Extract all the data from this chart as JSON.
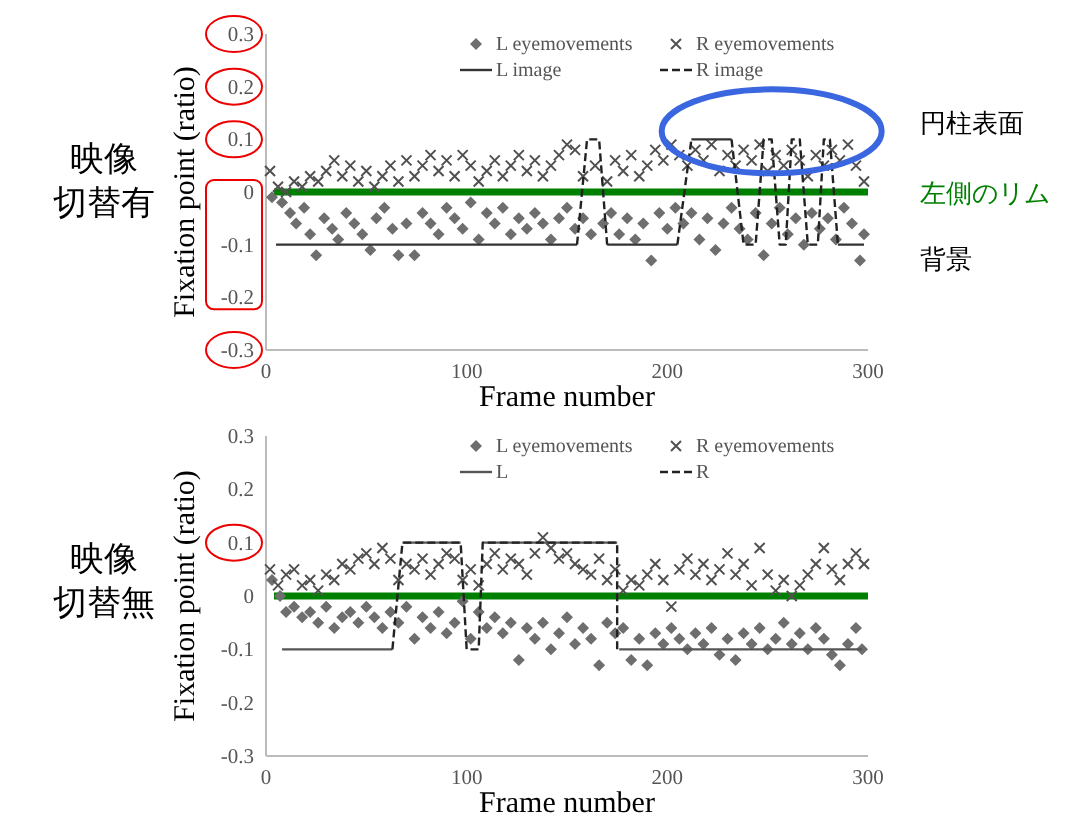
{
  "chart_data": [
    {
      "type": "scatter",
      "xlabel": "Frame number",
      "ylabel": "Fixation point (ratio)",
      "xlim": [
        0,
        300
      ],
      "xticks": [
        0,
        100,
        200,
        300
      ],
      "ylim": [
        -0.3,
        0.3
      ],
      "yticks": [
        -0.3,
        -0.2,
        -0.1,
        0,
        0.1,
        0.2,
        0.3
      ],
      "legend": "top right",
      "grid": false,
      "annotations": [
        "映像切替有",
        "円柱表面",
        "左側のリム",
        "背景"
      ],
      "ref_lines": [
        {
          "axis": "y",
          "value": 0,
          "color": "#008000"
        }
      ],
      "series": [
        {
          "name": "L eyemovements",
          "color": "#6e6e6e",
          "marker": "diamond",
          "x": [
            3,
            8,
            12,
            15,
            19,
            22,
            25,
            29,
            33,
            36,
            40,
            44,
            48,
            52,
            55,
            59,
            63,
            66,
            70,
            74,
            78,
            82,
            86,
            90,
            94,
            98,
            102,
            106,
            110,
            114,
            118,
            122,
            126,
            130,
            134,
            138,
            142,
            146,
            150,
            154,
            158,
            162,
            168,
            172,
            176,
            180,
            184,
            188,
            192,
            196,
            200,
            204,
            208,
            212,
            216,
            220,
            224,
            228,
            232,
            236,
            240,
            244,
            248,
            252,
            256,
            260,
            264,
            268,
            272,
            276,
            280,
            284,
            288,
            292,
            296,
            298
          ],
          "values": [
            -0.01,
            -0.02,
            -0.04,
            -0.06,
            -0.03,
            -0.08,
            -0.12,
            -0.05,
            -0.07,
            -0.09,
            -0.04,
            -0.06,
            -0.08,
            -0.11,
            -0.05,
            -0.03,
            -0.07,
            -0.12,
            -0.06,
            -0.12,
            -0.04,
            -0.06,
            -0.08,
            -0.03,
            -0.05,
            -0.07,
            -0.02,
            -0.09,
            -0.04,
            -0.06,
            -0.03,
            -0.08,
            -0.05,
            -0.07,
            -0.04,
            -0.06,
            -0.09,
            -0.05,
            -0.03,
            -0.07,
            -0.05,
            -0.08,
            -0.06,
            -0.04,
            -0.08,
            -0.05,
            -0.09,
            -0.06,
            -0.13,
            -0.04,
            -0.07,
            -0.03,
            -0.06,
            -0.04,
            -0.09,
            -0.05,
            -0.11,
            -0.06,
            -0.03,
            -0.07,
            -0.09,
            -0.04,
            -0.12,
            -0.06,
            -0.03,
            -0.08,
            -0.05,
            -0.1,
            -0.04,
            -0.07,
            -0.05,
            -0.09,
            -0.03,
            -0.06,
            -0.13,
            -0.08
          ]
        },
        {
          "name": "R eyemovements",
          "color": "#505050",
          "marker": "cross",
          "x": [
            2,
            6,
            10,
            14,
            18,
            22,
            26,
            30,
            34,
            38,
            42,
            46,
            50,
            54,
            58,
            62,
            66,
            70,
            74,
            78,
            82,
            86,
            90,
            94,
            98,
            102,
            106,
            110,
            114,
            118,
            122,
            126,
            130,
            134,
            138,
            142,
            146,
            150,
            154,
            158,
            164,
            170,
            174,
            178,
            182,
            186,
            190,
            194,
            198,
            202,
            206,
            210,
            214,
            218,
            222,
            226,
            230,
            234,
            238,
            242,
            246,
            250,
            254,
            258,
            262,
            266,
            270,
            274,
            278,
            282,
            286,
            290,
            294,
            298
          ],
          "values": [
            0.04,
            0.01,
            0.0,
            0.02,
            0.01,
            0.03,
            0.02,
            0.04,
            0.06,
            0.03,
            0.05,
            0.02,
            0.04,
            0.01,
            0.03,
            0.05,
            0.02,
            0.06,
            0.03,
            0.05,
            0.07,
            0.04,
            0.06,
            0.03,
            0.07,
            0.05,
            0.02,
            0.04,
            0.06,
            0.03,
            0.05,
            0.07,
            0.04,
            0.06,
            0.03,
            0.05,
            0.07,
            0.09,
            0.08,
            0.03,
            0.05,
            0.02,
            0.06,
            0.04,
            0.07,
            0.03,
            0.05,
            0.08,
            0.06,
            0.09,
            0.07,
            0.05,
            0.08,
            0.06,
            0.09,
            0.04,
            0.07,
            0.05,
            0.08,
            0.06,
            0.09,
            0.04,
            0.07,
            0.05,
            0.08,
            0.06,
            0.03,
            0.07,
            0.05,
            0.08,
            0.06,
            0.09,
            0.05,
            0.02
          ]
        },
        {
          "name": "L image",
          "type": "line",
          "color": "#333333",
          "line_style": "solid",
          "x": [
            5,
            155,
            null,
            170,
            205,
            null,
            212,
            232,
            null,
            285,
            298
          ],
          "values": [
            -0.1,
            -0.1,
            null,
            -0.1,
            -0.1,
            null,
            0.1,
            0.1,
            null,
            -0.1,
            -0.1
          ]
        },
        {
          "name": "R image",
          "type": "line",
          "color": "#222222",
          "line_style": "dashed",
          "x": [
            155,
            160,
            166,
            170,
            null,
            205,
            212,
            null,
            232,
            238,
            244,
            248,
            252,
            256,
            259,
            262,
            266,
            270,
            275,
            278,
            281,
            285
          ],
          "values": [
            -0.1,
            0.1,
            0.1,
            -0.1,
            null,
            -0.1,
            0.1,
            null,
            0.1,
            -0.1,
            -0.1,
            0.1,
            0.1,
            -0.1,
            -0.1,
            0.1,
            0.1,
            -0.1,
            -0.1,
            0.1,
            0.1,
            -0.1
          ]
        }
      ]
    },
    {
      "type": "scatter",
      "xlabel": "Frame number",
      "ylabel": "Fixation point (ratio)",
      "xlim": [
        0,
        300
      ],
      "xticks": [
        0,
        100,
        200,
        300
      ],
      "ylim": [
        -0.3,
        0.3
      ],
      "yticks": [
        -0.3,
        -0.2,
        -0.1,
        0,
        0.1,
        0.2,
        0.3
      ],
      "legend": "top right",
      "grid": false,
      "annotations": [
        "映像切替無"
      ],
      "ref_lines": [
        {
          "axis": "y",
          "value": 0,
          "color": "#008000"
        }
      ],
      "series": [
        {
          "name": "L eyemovements",
          "color": "#6e6e6e",
          "marker": "diamond",
          "x": [
            3,
            7,
            10,
            14,
            18,
            22,
            26,
            30,
            34,
            38,
            42,
            46,
            50,
            54,
            58,
            62,
            66,
            70,
            74,
            78,
            82,
            86,
            90,
            94,
            98,
            102,
            106,
            110,
            114,
            118,
            122,
            126,
            130,
            134,
            138,
            142,
            146,
            150,
            154,
            158,
            162,
            166,
            170,
            174,
            178,
            182,
            186,
            190,
            194,
            198,
            202,
            206,
            210,
            214,
            218,
            222,
            226,
            230,
            234,
            238,
            242,
            246,
            250,
            254,
            258,
            262,
            266,
            270,
            274,
            278,
            282,
            286,
            290,
            294,
            297
          ],
          "values": [
            0.03,
            0.0,
            -0.03,
            -0.02,
            -0.04,
            -0.03,
            -0.05,
            -0.02,
            -0.06,
            -0.04,
            -0.03,
            -0.05,
            -0.02,
            -0.04,
            -0.06,
            -0.03,
            -0.05,
            -0.02,
            -0.08,
            -0.04,
            -0.06,
            -0.03,
            -0.07,
            -0.05,
            -0.01,
            -0.08,
            -0.03,
            -0.06,
            -0.04,
            -0.07,
            -0.05,
            -0.12,
            -0.06,
            -0.08,
            -0.05,
            -0.1,
            -0.07,
            -0.04,
            -0.09,
            -0.06,
            -0.08,
            -0.13,
            -0.05,
            -0.07,
            -0.06,
            -0.12,
            -0.08,
            -0.13,
            -0.07,
            -0.09,
            -0.06,
            -0.08,
            -0.1,
            -0.07,
            -0.09,
            -0.06,
            -0.11,
            -0.08,
            -0.12,
            -0.07,
            -0.09,
            -0.06,
            -0.1,
            -0.08,
            -0.05,
            -0.09,
            -0.07,
            -0.1,
            -0.06,
            -0.08,
            -0.11,
            -0.13,
            -0.09,
            -0.06,
            -0.1
          ]
        },
        {
          "name": "R eyemovements",
          "color": "#505050",
          "marker": "cross",
          "x": [
            2,
            6,
            10,
            14,
            18,
            22,
            26,
            30,
            34,
            38,
            42,
            46,
            50,
            54,
            58,
            62,
            66,
            70,
            74,
            78,
            82,
            86,
            90,
            94,
            98,
            102,
            106,
            110,
            114,
            118,
            122,
            126,
            130,
            134,
            138,
            142,
            146,
            150,
            154,
            158,
            162,
            166,
            170,
            174,
            178,
            182,
            186,
            190,
            194,
            198,
            202,
            206,
            210,
            214,
            218,
            222,
            226,
            230,
            234,
            238,
            242,
            246,
            250,
            254,
            258,
            262,
            266,
            270,
            274,
            278,
            282,
            286,
            290,
            294,
            298
          ],
          "values": [
            0.05,
            0.02,
            0.04,
            0.05,
            0.02,
            0.03,
            0.01,
            0.04,
            0.03,
            0.06,
            0.05,
            0.07,
            0.08,
            0.06,
            0.09,
            0.07,
            0.03,
            0.06,
            0.05,
            0.07,
            0.04,
            0.06,
            0.08,
            0.07,
            0.03,
            0.05,
            0.02,
            0.06,
            0.08,
            0.05,
            0.07,
            0.06,
            0.04,
            0.08,
            0.11,
            0.09,
            0.07,
            0.08,
            0.06,
            0.05,
            0.04,
            0.07,
            0.03,
            0.05,
            0.01,
            0.03,
            0.02,
            0.04,
            0.06,
            0.03,
            -0.02,
            0.05,
            0.07,
            0.04,
            0.06,
            0.03,
            0.05,
            0.08,
            0.04,
            0.06,
            0.02,
            0.09,
            0.04,
            0.01,
            0.03,
            0.0,
            0.02,
            0.04,
            0.06,
            0.09,
            0.05,
            0.03,
            0.06,
            0.08,
            0.06
          ]
        },
        {
          "name": "L",
          "type": "line",
          "color": "#555555",
          "line_style": "solid",
          "x": [
            8,
            63,
            null,
            68,
            97,
            null,
            108,
            175,
            null,
            176,
            297
          ],
          "values": [
            -0.1,
            -0.1,
            null,
            0.1,
            0.1,
            null,
            0.1,
            0.1,
            null,
            -0.1,
            -0.1
          ]
        },
        {
          "name": "R",
          "type": "line",
          "color": "#222222",
          "line_style": "dashed",
          "x": [
            63,
            68,
            97,
            100,
            106,
            108,
            175,
            175
          ],
          "values": [
            -0.1,
            0.1,
            0.1,
            -0.1,
            -0.1,
            0.1,
            0.1,
            -0.1
          ]
        }
      ]
    }
  ]
}
